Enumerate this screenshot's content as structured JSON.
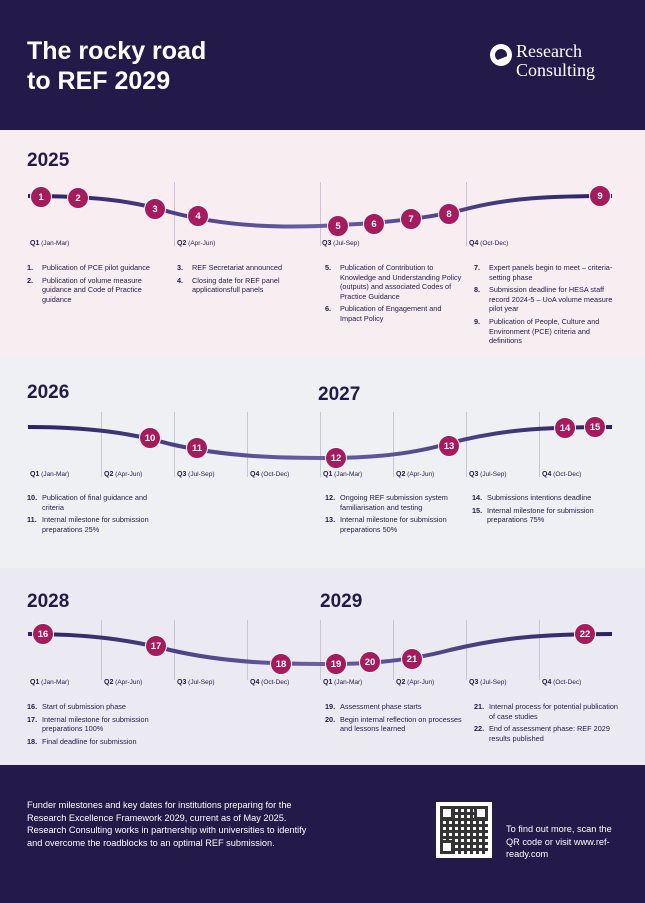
{
  "header": {
    "title": "The rocky road\nto REF 2029",
    "logo_line1": "Research",
    "logo_line2": "Consulting"
  },
  "colors": {
    "navy": "#231a4a",
    "node": "#a81a5e",
    "band1": "#f8eef2",
    "band2": "#eef0f3",
    "band3": "#ebe9f1"
  },
  "y2025": {
    "year": "2025",
    "quarters": [
      {
        "q": "Q1",
        "months": "(Jan-Mar)"
      },
      {
        "q": "Q2",
        "months": "(Apr-Jun)"
      },
      {
        "q": "Q3",
        "months": "(Jul-Sep)"
      },
      {
        "q": "Q4",
        "months": "(Oct-Dec)"
      }
    ],
    "nodes": [
      "1",
      "2",
      "3",
      "4",
      "5",
      "6",
      "7",
      "8",
      "9"
    ],
    "col1": [
      {
        "n": "1.",
        "t": "Publication of PCE pilot guidance"
      },
      {
        "n": "2.",
        "t": "Publication of volume measure guidance and Code of Practice guidance"
      }
    ],
    "col2": [
      {
        "n": "3.",
        "t": "REF Secretariat announced"
      },
      {
        "n": "4.",
        "t": "Closing date for REF panel applicationsfull panels"
      }
    ],
    "col3": [
      {
        "n": "5.",
        "t": "Publication of Contribution to Knowledge and Understanding Policy (outputs) and associated Codes of Practice Guidance"
      },
      {
        "n": "6.",
        "t": "Publication of Engagement and Impact Policy"
      }
    ],
    "col4": [
      {
        "n": "7.",
        "t": "Expert panels begin to meet – criteria-setting phase"
      },
      {
        "n": "8.",
        "t": "Submission deadline for HESA staff record 2024-5 – UoA volume measure pilot year"
      },
      {
        "n": "9.",
        "t": "Publication of People, Culture and Environment (PCE) criteria and definitions"
      }
    ]
  },
  "y2026": {
    "year": "2026",
    "year2": "2027",
    "quarters": [
      {
        "q": "Q1",
        "months": "(Jan-Mar)"
      },
      {
        "q": "Q2",
        "months": "(Apr-Jun)"
      },
      {
        "q": "Q3",
        "months": "(Jul-Sep)"
      },
      {
        "q": "Q4",
        "months": "(Oct-Dec)"
      },
      {
        "q": "Q1",
        "months": "(Jan-Mar)"
      },
      {
        "q": "Q2",
        "months": "(Apr-Jun)"
      },
      {
        "q": "Q3",
        "months": "(Jul-Sep)"
      },
      {
        "q": "Q4",
        "months": "(Oct-Dec)"
      }
    ],
    "nodes": [
      "10",
      "11",
      "12",
      "13",
      "14",
      "15"
    ],
    "col1": [
      {
        "n": "10.",
        "t": "Publication of final guidance and criteria"
      },
      {
        "n": "11.",
        "t": "Internal milestone for submission preparations 25%"
      }
    ],
    "col2": [
      {
        "n": "12.",
        "t": "Ongoing REF submission system familiarisation and testing"
      },
      {
        "n": "13.",
        "t": "Internal milestone for submission preparations 50%"
      }
    ],
    "col3": [
      {
        "n": "14.",
        "t": "Submissions intentions deadline"
      },
      {
        "n": "15.",
        "t": "Internal milestone for submission preparations 75%"
      }
    ]
  },
  "y2028": {
    "year": "2028",
    "year2": "2029",
    "quarters": [
      {
        "q": "Q1",
        "months": "(Jan-Mar)"
      },
      {
        "q": "Q2",
        "months": "(Apr-Jun)"
      },
      {
        "q": "Q3",
        "months": "(Jul-Sep)"
      },
      {
        "q": "Q4",
        "months": "(Oct-Dec)"
      },
      {
        "q": "Q1",
        "months": "(Jan-Mar)"
      },
      {
        "q": "Q2",
        "months": "(Apr-Jun)"
      },
      {
        "q": "Q3",
        "months": "(Jul-Sep)"
      },
      {
        "q": "Q4",
        "months": "(Oct-Dec)"
      }
    ],
    "nodes": [
      "16",
      "17",
      "18",
      "19",
      "20",
      "21",
      "22"
    ],
    "col1": [
      {
        "n": "16.",
        "t": "Start of submission phase"
      },
      {
        "n": "17.",
        "t": "Internal milestone for submission preparations 100%"
      },
      {
        "n": "18.",
        "t": "Final deadline for submission"
      }
    ],
    "col2": [
      {
        "n": "19.",
        "t": "Assessment phase starts"
      },
      {
        "n": "20.",
        "t": "Begin internal reflection on processes and lessons learned"
      }
    ],
    "col3": [
      {
        "n": "21.",
        "t": "Internal process for potential publication of case studies"
      },
      {
        "n": "22.",
        "t": "End of assessment phase: REF 2029 results published"
      }
    ]
  },
  "footer": {
    "text": "Funder milestones and key dates for institutions preparing for the Research Excellence Framework 2029, current as of May 2025. Research Consulting works in partnership with universities to identify and overcome the roadblocks to an optimal REF submission.",
    "cta": "To find out more, scan the QR code or visit www.ref-ready.com"
  }
}
